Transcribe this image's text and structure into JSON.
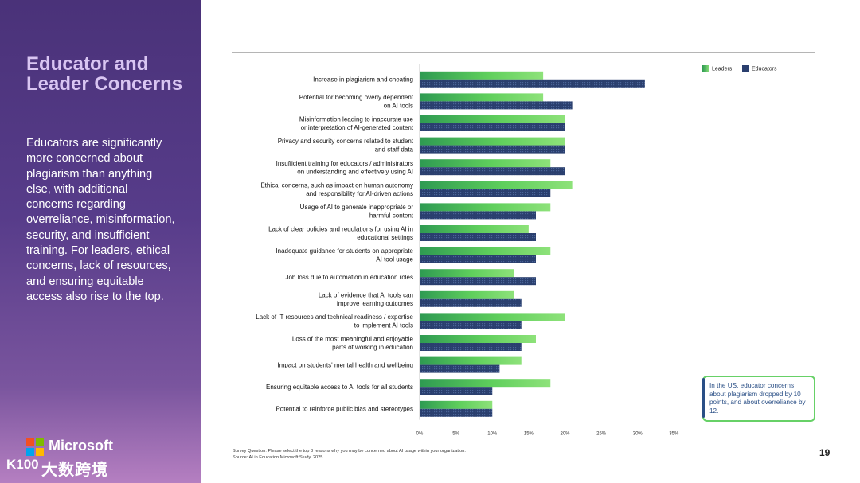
{
  "sidebar": {
    "title": "Educator and Leader Concerns",
    "body": "Educators are significantly more concerned about plagiarism than anything else, with additional concerns regarding overreliance, misinformation, security, and insufficient training. For leaders, ethical concerns, lack of resources, and ensuring equitable access also rise to the top.",
    "logo_text": "Microsoft",
    "watermark_text": "大数跨境",
    "watermark_icon_text": "K100"
  },
  "legend": {
    "leaders": "Leaders",
    "educators": "Educators"
  },
  "callout": "In the US, educator concerns about plagiarism dropped by 10 points, and about overreliance by 12.",
  "footnote": {
    "question": "Survey Question: Please select the top 3 reasons why you may be concerned about AI usage within your organization.",
    "source": "Source: AI in Education Microsoft Study, 2025"
  },
  "page_number": "19",
  "colors": {
    "leaders": "#5fcf5c",
    "educators": "#2a3f6e",
    "sidebar": "#4a3279",
    "accent": "#67d167"
  },
  "chart_data": {
    "type": "bar",
    "orientation": "horizontal",
    "categories": [
      [
        "Increase in plagiarism and cheating"
      ],
      [
        "Potential for becoming overly dependent",
        "on AI tools"
      ],
      [
        "Misinformation leading to inaccurate use",
        "or interpretation of AI-generated content"
      ],
      [
        "Privacy and security concerns related to student",
        "and staff data"
      ],
      [
        "Insufficient training for educators / administrators",
        "on understanding and effectively using AI"
      ],
      [
        "Ethical concerns, such as impact on human autonomy",
        "and responsibility for AI-driven actions"
      ],
      [
        "Usage of AI to generate inappropriate or",
        "harmful content"
      ],
      [
        "Lack of clear policies and regulations for using AI in",
        "educational settings"
      ],
      [
        "Inadequate guidance for students on appropriate",
        "AI tool usage"
      ],
      [
        "Job loss due to automation in education roles"
      ],
      [
        "Lack of evidence that AI tools can",
        "improve learning outcomes"
      ],
      [
        "Lack of IT resources and technical readiness / expertise",
        "to implement AI tools"
      ],
      [
        "Loss of the most meaningful and enjoyable",
        "parts of working in education"
      ],
      [
        "Impact on students' mental health and wellbeing"
      ],
      [
        "Ensuring equitable access to AI tools for all students"
      ],
      [
        "Potential to reinforce public bias and stereotypes"
      ]
    ],
    "series": [
      {
        "name": "Leaders",
        "values": [
          17,
          17,
          20,
          20,
          18,
          21,
          18,
          15,
          18,
          13,
          13,
          20,
          16,
          14,
          18,
          10
        ]
      },
      {
        "name": "Educators",
        "values": [
          31,
          21,
          20,
          20,
          20,
          18,
          16,
          16,
          16,
          16,
          14,
          14,
          14,
          11,
          10,
          10
        ]
      }
    ],
    "xlim": [
      0,
      35
    ],
    "xticks": [
      "0%",
      "5%",
      "10%",
      "15%",
      "20%",
      "25%",
      "30%",
      "35%"
    ],
    "legend_position": "top-right"
  }
}
